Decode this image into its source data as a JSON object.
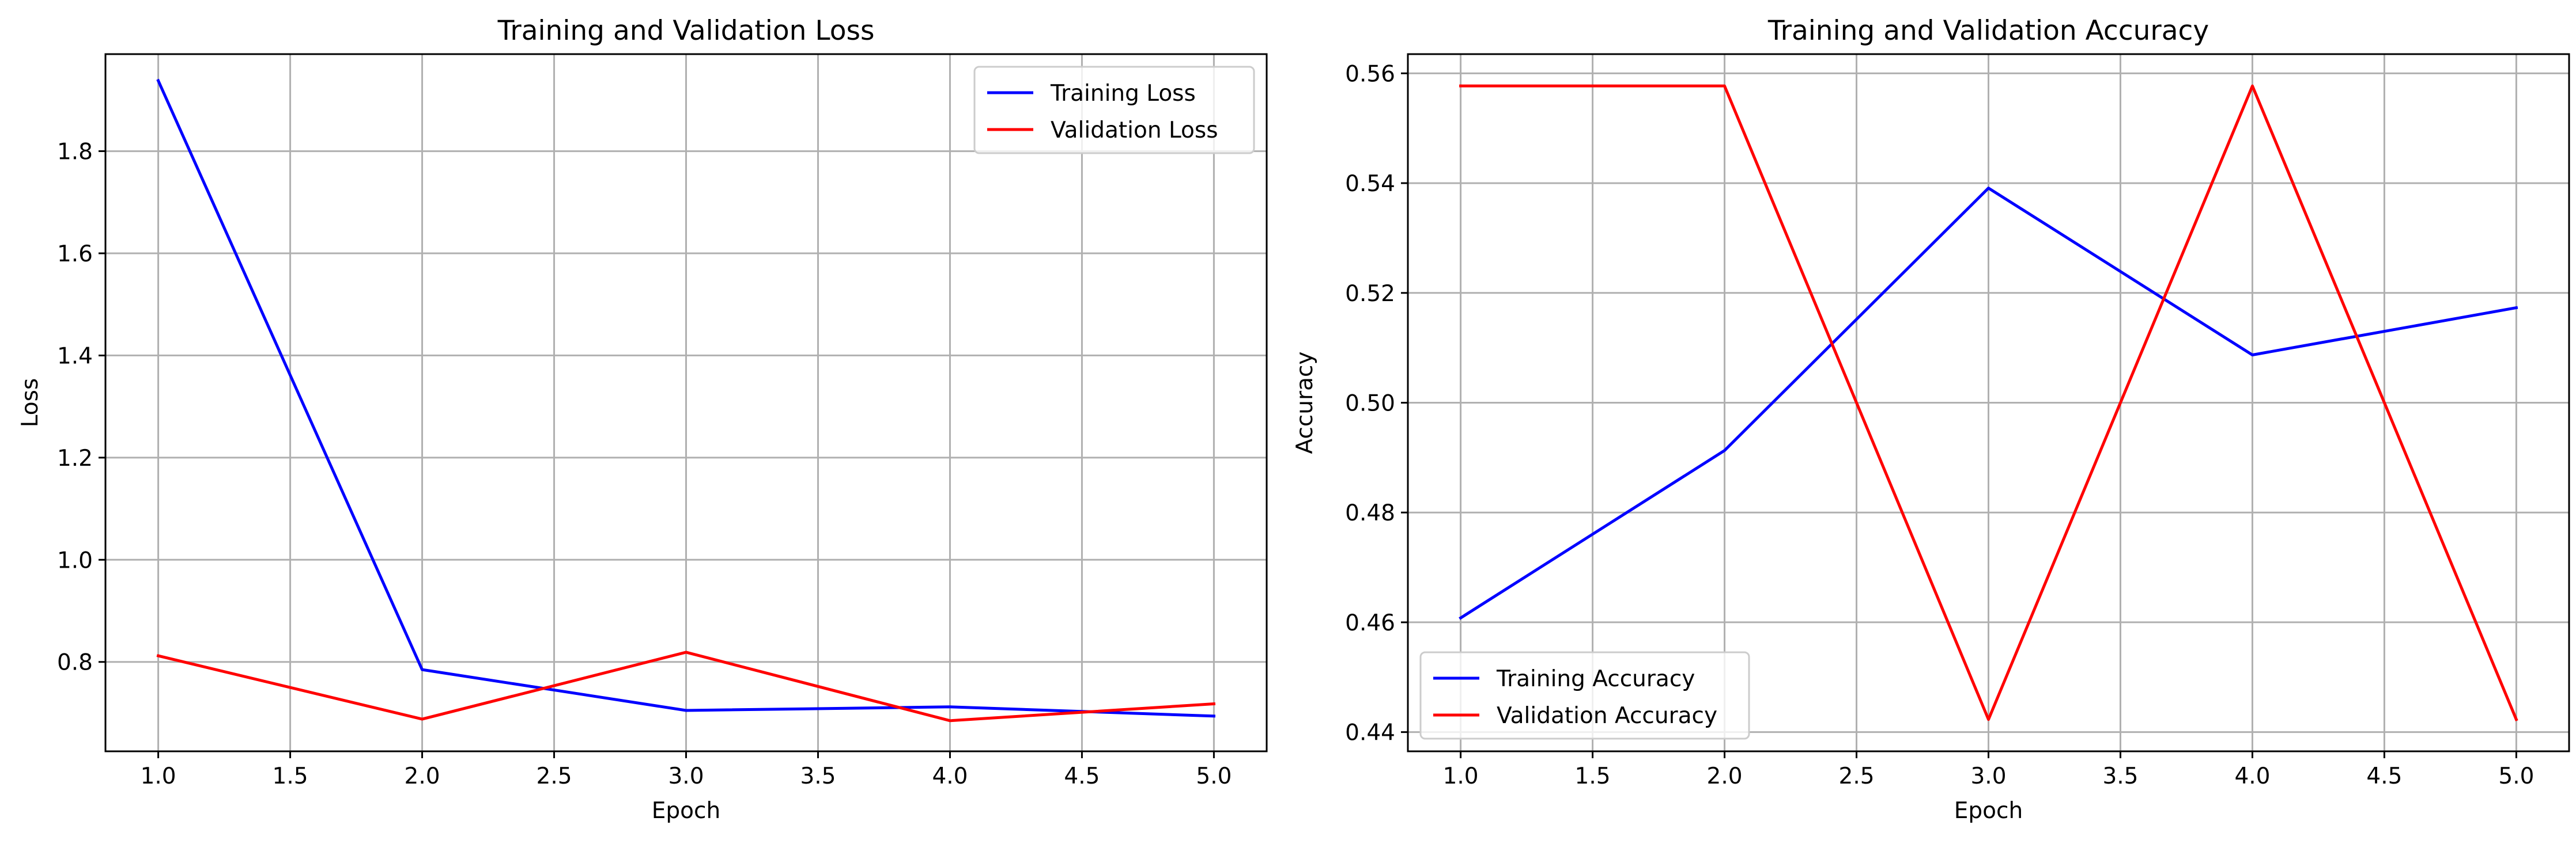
{
  "chart_data": [
    {
      "type": "line",
      "title": "Training and Validation Loss",
      "xlabel": "Epoch",
      "ylabel": "Loss",
      "xlim": [
        0.8,
        5.2
      ],
      "ylim": [
        0.625,
        1.99
      ],
      "xticks": [
        1.0,
        1.5,
        2.0,
        2.5,
        3.0,
        3.5,
        4.0,
        4.5,
        5.0
      ],
      "xtick_labels": [
        "1.0",
        "1.5",
        "2.0",
        "2.5",
        "3.0",
        "3.5",
        "4.0",
        "4.5",
        "5.0"
      ],
      "yticks": [
        0.8,
        1.0,
        1.2,
        1.4,
        1.6,
        1.8
      ],
      "ytick_labels": [
        "0.8",
        "1.0",
        "1.2",
        "1.4",
        "1.6",
        "1.8"
      ],
      "grid": true,
      "legend_position": "upper right",
      "x": [
        1,
        2,
        3,
        4,
        5
      ],
      "series": [
        {
          "name": "Training Loss",
          "color": "#0000ff",
          "values": [
            1.938,
            0.785,
            0.705,
            0.712,
            0.694
          ]
        },
        {
          "name": "Validation Loss",
          "color": "#ff0000",
          "values": [
            0.812,
            0.688,
            0.819,
            0.685,
            0.718
          ]
        }
      ]
    },
    {
      "type": "line",
      "title": "Training and Validation Accuracy",
      "xlabel": "Epoch",
      "ylabel": "Accuracy",
      "xlim": [
        0.8,
        5.2
      ],
      "ylim": [
        0.4365,
        0.5635
      ],
      "xticks": [
        1.0,
        1.5,
        2.0,
        2.5,
        3.0,
        3.5,
        4.0,
        4.5,
        5.0
      ],
      "xtick_labels": [
        "1.0",
        "1.5",
        "2.0",
        "2.5",
        "3.0",
        "3.5",
        "4.0",
        "4.5",
        "5.0"
      ],
      "yticks": [
        0.44,
        0.46,
        0.48,
        0.5,
        0.52,
        0.54,
        0.56
      ],
      "ytick_labels": [
        "0.44",
        "0.46",
        "0.48",
        "0.50",
        "0.52",
        "0.54",
        "0.56"
      ],
      "grid": true,
      "legend_position": "lower left",
      "x": [
        1,
        2,
        3,
        4,
        5
      ],
      "series": [
        {
          "name": "Training Accuracy",
          "color": "#0000ff",
          "values": [
            0.4608,
            0.4913,
            0.5391,
            0.5087,
            0.5173
          ]
        },
        {
          "name": "Validation Accuracy",
          "color": "#ff0000",
          "values": [
            0.5577,
            0.5577,
            0.4423,
            0.5577,
            0.4423
          ]
        }
      ]
    }
  ]
}
